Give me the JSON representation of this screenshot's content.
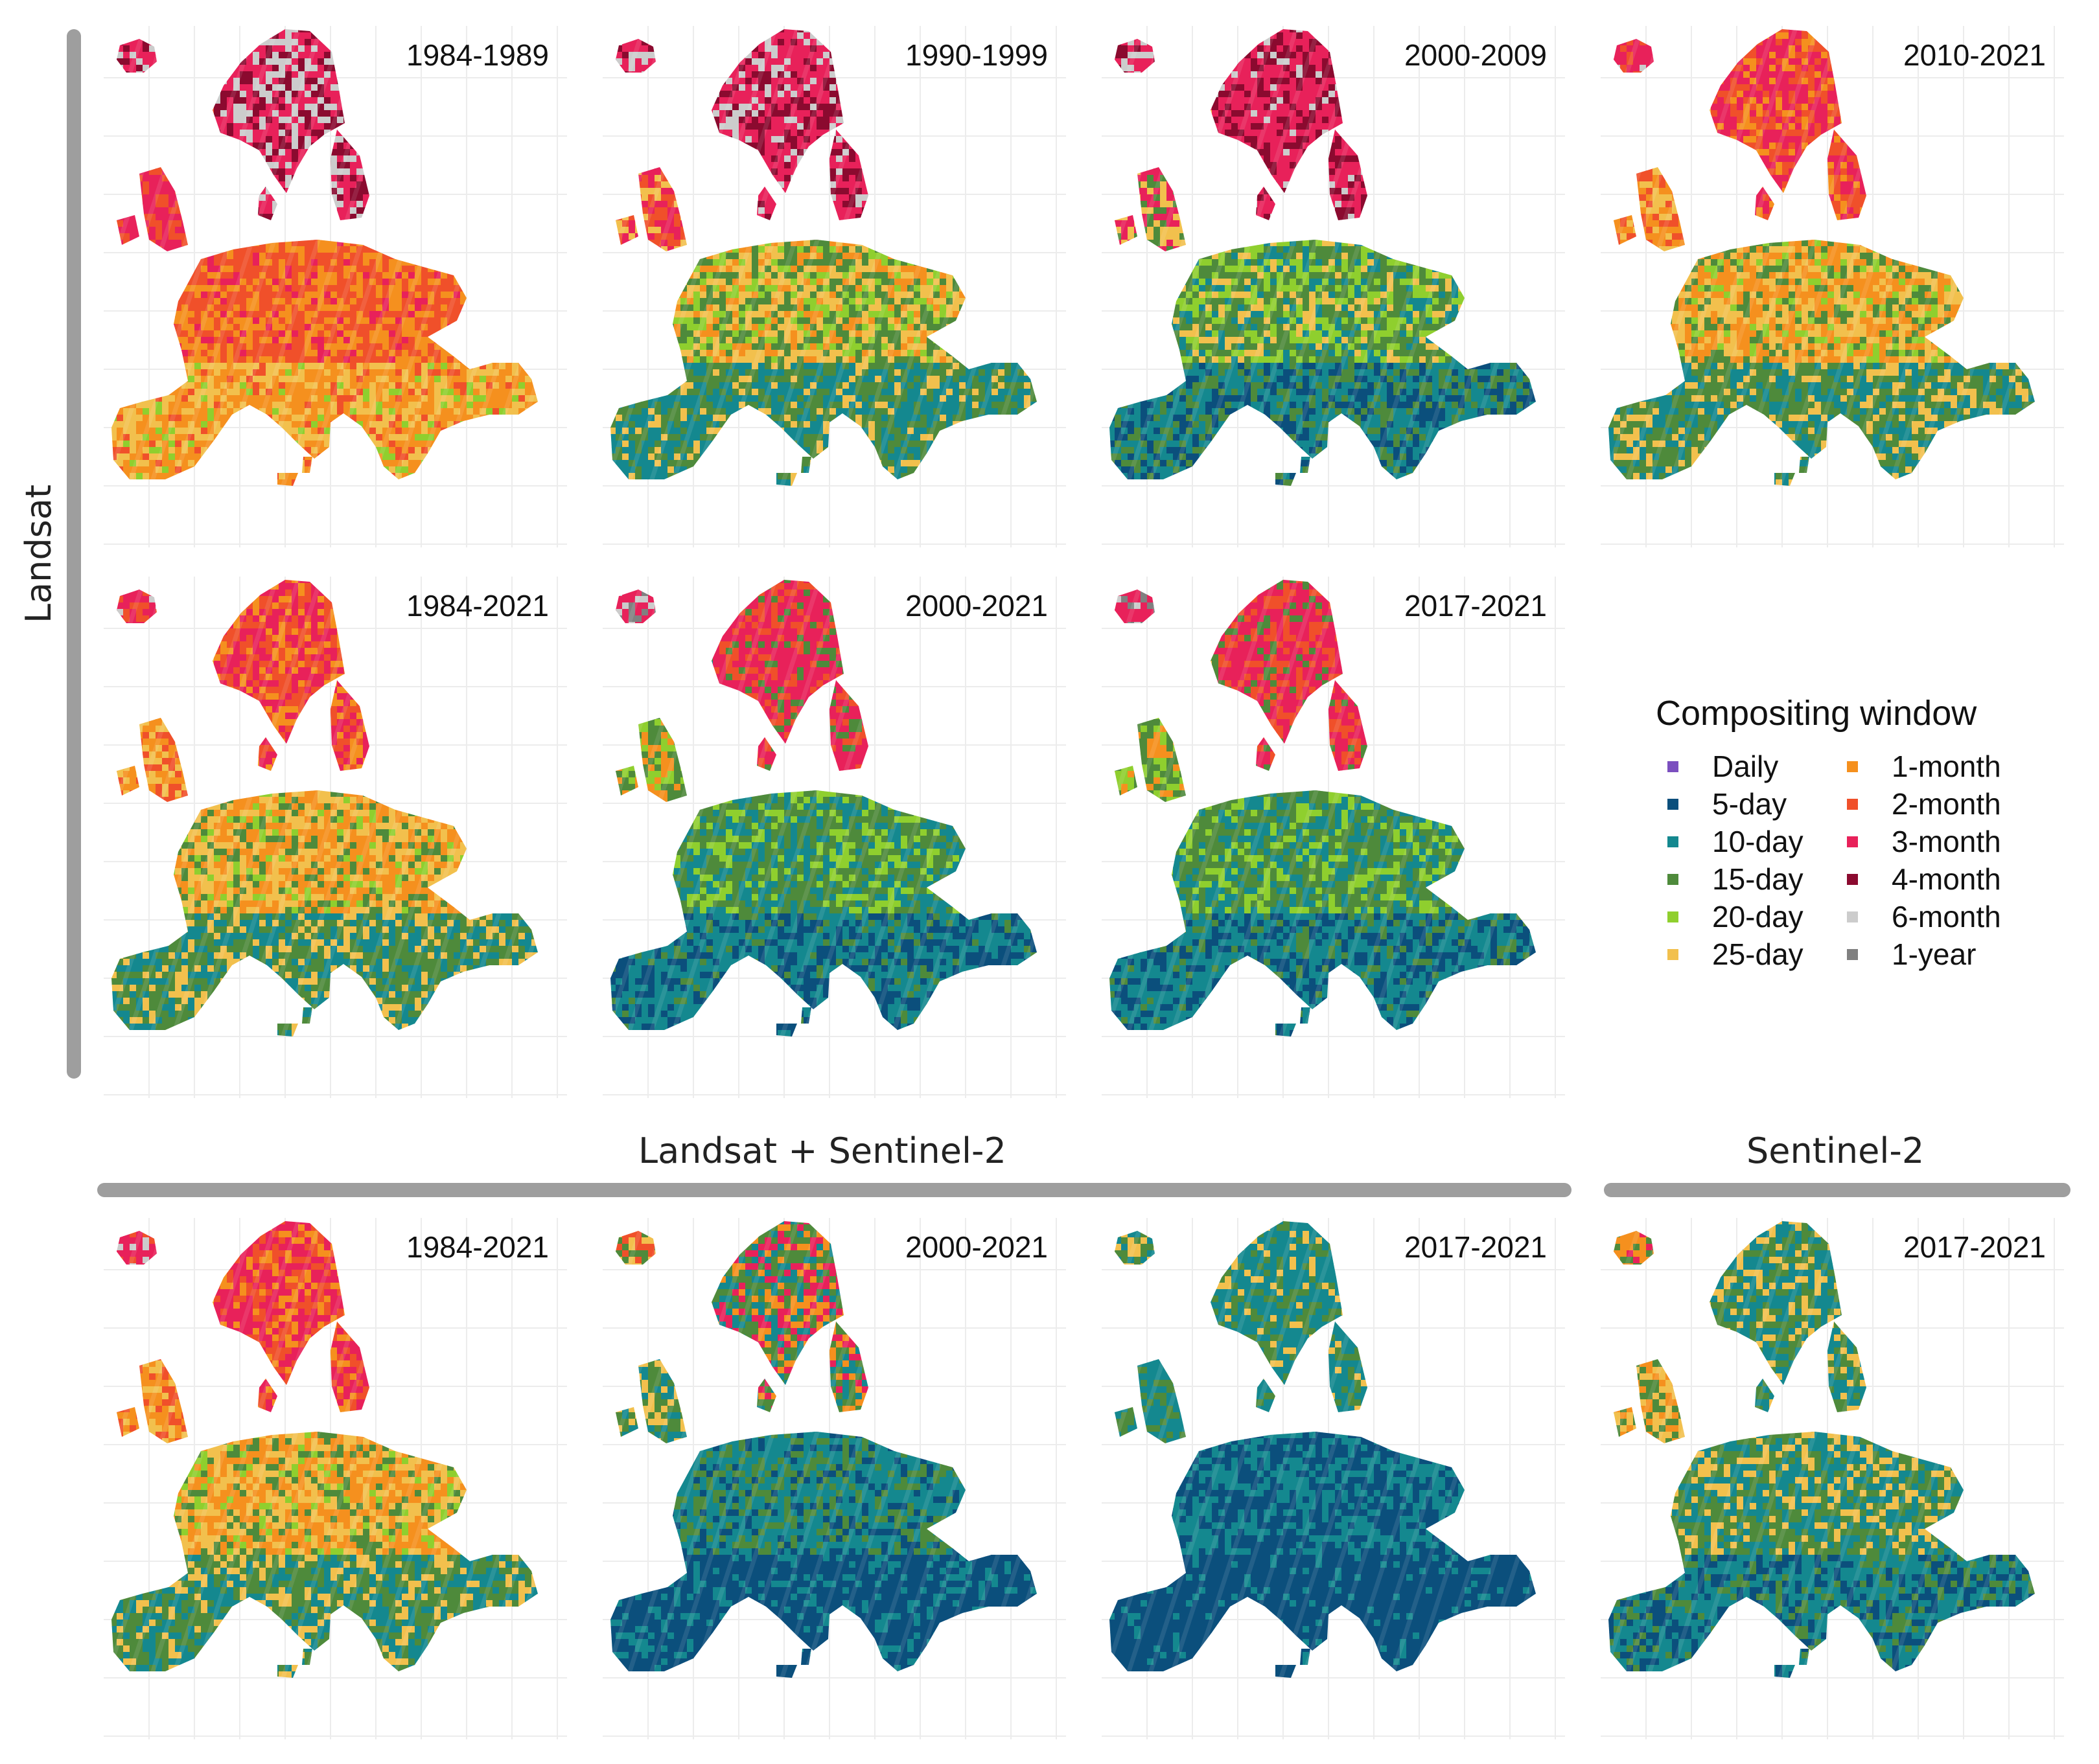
{
  "figure": {
    "groups": {
      "landsat": "Landsat",
      "landsat_sentinel": "Landsat + Sentinel-2",
      "sentinel": "Sentinel-2"
    },
    "panels": [
      {
        "label": "1984-1989",
        "group": "Landsat",
        "palette": "reds"
      },
      {
        "label": "1990-1999",
        "group": "Landsat",
        "palette": "mixed"
      },
      {
        "label": "2000-2009",
        "group": "Landsat",
        "palette": "mixed-teal"
      },
      {
        "label": "2010-2021",
        "group": "Landsat",
        "palette": "orange-green"
      },
      {
        "label": "1984-2021",
        "group": "Landsat",
        "palette": "orange-green"
      },
      {
        "label": "2000-2021",
        "group": "Landsat",
        "palette": "teal-green"
      },
      {
        "label": "2017-2021",
        "group": "Landsat",
        "palette": "teal-green"
      },
      {
        "label": "1984-2021",
        "group": "Landsat + Sentinel-2",
        "palette": "orange-green"
      },
      {
        "label": "2000-2021",
        "group": "Landsat + Sentinel-2",
        "palette": "blue-teal"
      },
      {
        "label": "2017-2021",
        "group": "Landsat + Sentinel-2",
        "palette": "blue"
      },
      {
        "label": "2017-2021",
        "group": "Sentinel-2",
        "palette": "sentinel"
      }
    ],
    "legend": {
      "title": "Compositing window",
      "items": [
        {
          "label": "Daily",
          "color": "#7b4fbf"
        },
        {
          "label": "5-day",
          "color": "#0b4f7c"
        },
        {
          "label": "10-day",
          "color": "#14888f"
        },
        {
          "label": "15-day",
          "color": "#4e8a3b"
        },
        {
          "label": "20-day",
          "color": "#8fcf2e"
        },
        {
          "label": "25-day",
          "color": "#f2c04d"
        },
        {
          "label": "1-month",
          "color": "#f5901e"
        },
        {
          "label": "2-month",
          "color": "#f0502a"
        },
        {
          "label": "3-month",
          "color": "#e8215a"
        },
        {
          "label": "4-month",
          "color": "#8b0a2f"
        },
        {
          "label": "6-month",
          "color": "#cccccc"
        },
        {
          "label": "1-year",
          "color": "#808080"
        }
      ]
    }
  }
}
